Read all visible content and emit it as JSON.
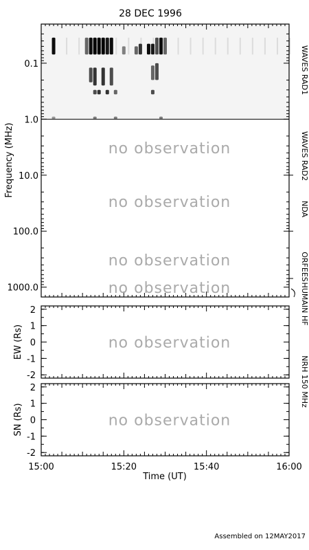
{
  "title": "28 DEC 1996",
  "footer": "Assembled on 12MAY2017",
  "no_observation_text": "no observation",
  "colors": {
    "ink": "#000000",
    "muted": "#aaaaaa",
    "background": "#ffffff"
  },
  "chart_data": [
    {
      "type": "heatmap",
      "name": "dynamic-spectrum",
      "ylabel": "Frequency (MHz)",
      "y_scale": "log",
      "y_inverted": true,
      "ylim": [
        0.02,
        1500
      ],
      "yticks": [
        "0.1",
        "1.0",
        "10.0",
        "100.0",
        "1000.0"
      ],
      "xlim": [
        "15:00",
        "16:00"
      ],
      "observed_band_mhz": [
        0.02,
        1.0
      ],
      "bursts": [
        {
          "time": "15:03",
          "freq_start": 0.035,
          "freq_end": 0.07,
          "intensity": 0.95
        },
        {
          "time": "15:11",
          "freq_start": 0.035,
          "freq_end": 0.07,
          "intensity": 0.6
        },
        {
          "time": "15:12",
          "freq_start": 0.035,
          "freq_end": 0.07,
          "intensity": 0.95
        },
        {
          "time": "15:13",
          "freq_start": 0.035,
          "freq_end": 0.07,
          "intensity": 1.0
        },
        {
          "time": "15:14",
          "freq_start": 0.035,
          "freq_end": 0.07,
          "intensity": 1.0
        },
        {
          "time": "15:15",
          "freq_start": 0.035,
          "freq_end": 0.07,
          "intensity": 1.0
        },
        {
          "time": "15:16",
          "freq_start": 0.035,
          "freq_end": 0.07,
          "intensity": 0.9
        },
        {
          "time": "15:17",
          "freq_start": 0.035,
          "freq_end": 0.07,
          "intensity": 0.95
        },
        {
          "time": "15:20",
          "freq_start": 0.05,
          "freq_end": 0.07,
          "intensity": 0.5
        },
        {
          "time": "15:23",
          "freq_start": 0.05,
          "freq_end": 0.07,
          "intensity": 0.6
        },
        {
          "time": "15:24",
          "freq_start": 0.045,
          "freq_end": 0.07,
          "intensity": 0.8
        },
        {
          "time": "15:26",
          "freq_start": 0.045,
          "freq_end": 0.07,
          "intensity": 0.95
        },
        {
          "time": "15:27",
          "freq_start": 0.045,
          "freq_end": 0.07,
          "intensity": 0.9
        },
        {
          "time": "15:28",
          "freq_start": 0.035,
          "freq_end": 0.07,
          "intensity": 0.7
        },
        {
          "time": "15:29",
          "freq_start": 0.035,
          "freq_end": 0.07,
          "intensity": 0.95
        },
        {
          "time": "15:30",
          "freq_start": 0.035,
          "freq_end": 0.07,
          "intensity": 0.6
        },
        {
          "time": "15:12",
          "freq_start": 0.12,
          "freq_end": 0.22,
          "intensity": 0.7
        },
        {
          "time": "15:13",
          "freq_start": 0.12,
          "freq_end": 0.25,
          "intensity": 0.8
        },
        {
          "time": "15:15",
          "freq_start": 0.12,
          "freq_end": 0.25,
          "intensity": 0.8
        },
        {
          "time": "15:17",
          "freq_start": 0.12,
          "freq_end": 0.25,
          "intensity": 0.7
        },
        {
          "time": "15:27",
          "freq_start": 0.11,
          "freq_end": 0.2,
          "intensity": 0.6
        },
        {
          "time": "15:28",
          "freq_start": 0.1,
          "freq_end": 0.2,
          "intensity": 0.7
        },
        {
          "time": "15:13",
          "freq_start": 0.3,
          "freq_end": 0.36,
          "intensity": 0.7
        },
        {
          "time": "15:14",
          "freq_start": 0.3,
          "freq_end": 0.36,
          "intensity": 0.8
        },
        {
          "time": "15:16",
          "freq_start": 0.3,
          "freq_end": 0.36,
          "intensity": 0.8
        },
        {
          "time": "15:18",
          "freq_start": 0.3,
          "freq_end": 0.36,
          "intensity": 0.6
        },
        {
          "time": "15:27",
          "freq_start": 0.3,
          "freq_end": 0.36,
          "intensity": 0.7
        },
        {
          "time": "15:03",
          "freq_start": 0.9,
          "freq_end": 1.0,
          "intensity": 0.4
        },
        {
          "time": "15:13",
          "freq_start": 0.9,
          "freq_end": 1.0,
          "intensity": 0.5
        },
        {
          "time": "15:18",
          "freq_start": 0.9,
          "freq_end": 1.0,
          "intensity": 0.5
        },
        {
          "time": "15:29",
          "freq_start": 0.9,
          "freq_end": 1.0,
          "intensity": 0.5
        }
      ],
      "no_observation_bands_mhz": [
        [
          1.0,
          10.0
        ],
        [
          10.0,
          100.0
        ],
        [
          100.0,
          700.0
        ],
        [
          700.0,
          1500.0
        ]
      ]
    },
    {
      "type": "scatter",
      "name": "ew-position",
      "ylabel": "EW (Rs)",
      "ylim": [
        -2.2,
        2.2
      ],
      "yticks": [
        "2",
        "1",
        "0",
        "-1",
        "-2"
      ],
      "xlim": [
        "15:00",
        "16:00"
      ],
      "x": [],
      "y": []
    },
    {
      "type": "scatter",
      "name": "sn-position",
      "ylabel": "SN (Rs)",
      "ylim": [
        -2.2,
        2.2
      ],
      "yticks": [
        "2",
        "1",
        "0",
        "-1",
        "-2"
      ],
      "xlim": [
        "15:00",
        "16:00"
      ],
      "xlabel": "Time (UT)",
      "xticks": [
        "15:00",
        "15:20",
        "15:40",
        "16:00"
      ],
      "x": [],
      "y": []
    }
  ],
  "instruments": [
    {
      "key": "waves-rad1",
      "label": "WAVES RAD1"
    },
    {
      "key": "waves-rad2",
      "label": "WAVES RAD2"
    },
    {
      "key": "nda",
      "label": "NDA"
    },
    {
      "key": "orfees",
      "label": "ORFEES"
    },
    {
      "key": "humain-hf",
      "label": "HUMAIN HF"
    },
    {
      "key": "nrh",
      "label": "NRH 150 MHz"
    }
  ]
}
